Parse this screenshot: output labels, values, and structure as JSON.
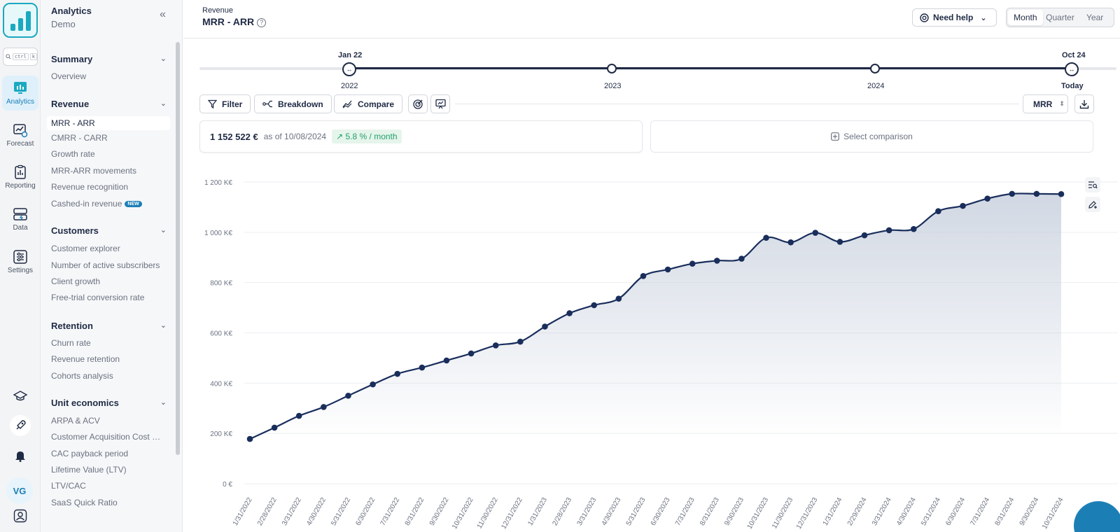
{
  "app": {
    "name": "Analytics",
    "workspace": "Demo"
  },
  "rail": {
    "search_key_1": "ctrl",
    "search_key_2": "k",
    "items": [
      {
        "label": "Analytics",
        "icon": "analytics-icon"
      },
      {
        "label": "Forecast",
        "icon": "forecast-icon"
      },
      {
        "label": "Reporting",
        "icon": "reporting-icon"
      },
      {
        "label": "Data",
        "icon": "data-icon"
      },
      {
        "label": "Settings",
        "icon": "settings-icon"
      }
    ],
    "avatar_initials": "VG"
  },
  "nav": {
    "sections": [
      {
        "title": "Summary",
        "items": [
          "Overview"
        ]
      },
      {
        "title": "Revenue",
        "items": [
          "MRR - ARR",
          "CMRR - CARR",
          "Growth rate",
          "MRR-ARR movements",
          "Revenue recognition",
          "Cashed-in revenue"
        ]
      },
      {
        "title": "Customers",
        "items": [
          "Customer explorer",
          "Number of active subscribers",
          "Client growth",
          "Free-trial conversion rate"
        ]
      },
      {
        "title": "Retention",
        "items": [
          "Churn rate",
          "Revenue retention",
          "Cohorts analysis"
        ]
      },
      {
        "title": "Unit economics",
        "items": [
          "ARPA & ACV",
          "Customer Acquisition Cost (CAC)",
          "CAC payback period",
          "Lifetime Value (LTV)",
          "LTV/CAC",
          "SaaS Quick Ratio"
        ]
      }
    ],
    "new_badge": "NEW",
    "active_item": "MRR - ARR"
  },
  "header": {
    "breadcrumb": "Revenue",
    "title": "MRR - ARR",
    "help_button": "Need help",
    "periods": [
      "Month",
      "Quarter",
      "Year"
    ],
    "active_period": "Month"
  },
  "timeline": {
    "start_label": "Jan 22",
    "end_label": "Oct 24",
    "years": [
      "2022",
      "2023",
      "2024"
    ],
    "today_label": "Today"
  },
  "toolbar": {
    "filter": "Filter",
    "breakdown": "Breakdown",
    "compare": "Compare",
    "metric": "MRR"
  },
  "kpi": {
    "value": "1 152 522 €",
    "as_of": "as of 10/08/2024",
    "growth": "5.8 % / month",
    "compare_placeholder": "Select comparison"
  },
  "colors": {
    "accent": "#1b7fb6",
    "line": "#1a2e5c",
    "growth": "#22a06b",
    "brand": "#1aa9c0"
  },
  "chart_data": {
    "type": "area",
    "title": "",
    "xlabel": "",
    "ylabel": "",
    "ylim": [
      0,
      1200
    ],
    "y_ticks": [
      "0 €",
      "200 K€",
      "400 K€",
      "600 K€",
      "800 K€",
      "1 000 K€",
      "1 200 K€"
    ],
    "y_tick_values": [
      0,
      200,
      400,
      600,
      800,
      1000,
      1200
    ],
    "grid": true,
    "legend": "none",
    "series": [
      {
        "x": [
          "1/31/2022",
          "2/28/2022",
          "3/31/2022",
          "4/30/2022",
          "5/31/2022",
          "6/30/2022",
          "7/31/2022",
          "8/31/2022",
          "9/30/2022",
          "10/31/2022",
          "11/30/2022",
          "12/31/2022",
          "1/31/2023",
          "2/28/2023",
          "3/31/2023",
          "4/30/2023",
          "5/31/2023",
          "6/30/2023",
          "7/31/2023",
          "8/31/2023",
          "9/30/2023",
          "10/31/2023",
          "11/30/2023",
          "12/31/2023",
          "1/31/2024",
          "2/29/2024",
          "3/31/2024",
          "4/30/2024",
          "5/31/2024",
          "6/30/2024",
          "7/31/2024",
          "8/31/2024",
          "9/30/2024",
          "10/31/2024"
        ],
        "values": [
          178,
          223,
          270,
          305,
          350,
          395,
          437,
          462,
          490,
          518,
          550,
          565,
          625,
          678,
          710,
          736,
          826,
          852,
          875,
          887,
          895,
          978,
          960,
          998,
          962,
          988,
          1008,
          1013,
          1084,
          1105,
          1134,
          1153,
          1153,
          1152
        ]
      }
    ]
  }
}
